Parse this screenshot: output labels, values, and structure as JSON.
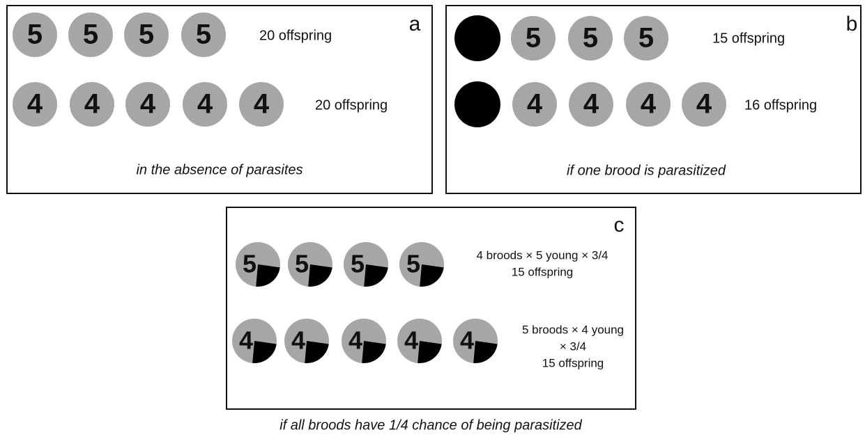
{
  "panels": [
    {
      "label": "a",
      "rows": [
        {
          "numbers": [
            5,
            5,
            5,
            5
          ],
          "texts": [
            "20 offspring"
          ]
        },
        {
          "numbers": [
            4,
            4,
            4,
            4,
            4
          ],
          "texts": [
            "20 offspring"
          ]
        }
      ],
      "caption": "in the absence of parasites"
    },
    {
      "label": "b",
      "rows": [
        {
          "numbers": [
            5,
            5,
            5
          ],
          "texts": [
            "15 offspring"
          ]
        },
        {
          "numbers": [
            4,
            4,
            4,
            4
          ],
          "texts": [
            "16 offspring"
          ]
        }
      ],
      "caption": "if one brood is parasitized"
    },
    {
      "label": "c",
      "rows": [
        {
          "numbers": [
            5,
            5,
            5,
            5
          ],
          "texts": [
            "4 broods × 5 young × 3/4",
            "15 offspring"
          ]
        },
        {
          "numbers": [
            4,
            4,
            4,
            4,
            4
          ],
          "texts": [
            "5 broods × 4 young",
            "× 3/4",
            "15 offspring"
          ]
        }
      ],
      "caption": "if all broods have 1/4 chance of being parasitized"
    }
  ]
}
